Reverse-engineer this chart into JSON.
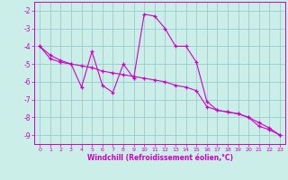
{
  "xlabel": "Windchill (Refroidissement éolien,°C)",
  "bg_color": "#cceee8",
  "line_color": "#cc00cc",
  "grid_color": "#99cccc",
  "xlim": [
    -0.5,
    23.5
  ],
  "ylim": [
    -9.5,
    -1.5
  ],
  "yticks": [
    -9,
    -8,
    -7,
    -6,
    -5,
    -4,
    -3,
    -2
  ],
  "xticks": [
    0,
    1,
    2,
    3,
    4,
    5,
    6,
    7,
    8,
    9,
    10,
    11,
    12,
    13,
    14,
    15,
    16,
    17,
    18,
    19,
    20,
    21,
    22,
    23
  ],
  "line1_x": [
    0,
    1,
    2,
    3,
    4,
    5,
    6,
    7,
    8,
    9,
    10,
    11,
    12,
    13,
    14,
    15,
    16,
    17,
    18,
    19,
    20,
    21,
    22,
    23
  ],
  "line1_y": [
    -4.0,
    -4.7,
    -4.9,
    -5.0,
    -6.3,
    -4.3,
    -6.2,
    -6.6,
    -5.0,
    -5.8,
    -2.2,
    -2.3,
    -3.0,
    -4.0,
    -4.0,
    -4.9,
    -7.1,
    -7.6,
    -7.7,
    -7.8,
    -8.0,
    -8.5,
    -8.7,
    -9.0
  ],
  "line2_x": [
    0,
    1,
    2,
    3,
    4,
    5,
    6,
    7,
    8,
    9,
    10,
    11,
    12,
    13,
    14,
    15,
    16,
    17,
    18,
    19,
    20,
    21,
    22,
    23
  ],
  "line2_y": [
    -4.0,
    -4.5,
    -4.8,
    -5.0,
    -5.1,
    -5.2,
    -5.4,
    -5.5,
    -5.6,
    -5.7,
    -5.8,
    -5.9,
    -6.0,
    -6.2,
    -6.3,
    -6.5,
    -7.4,
    -7.6,
    -7.7,
    -7.8,
    -8.0,
    -8.3,
    -8.6,
    -9.0
  ]
}
